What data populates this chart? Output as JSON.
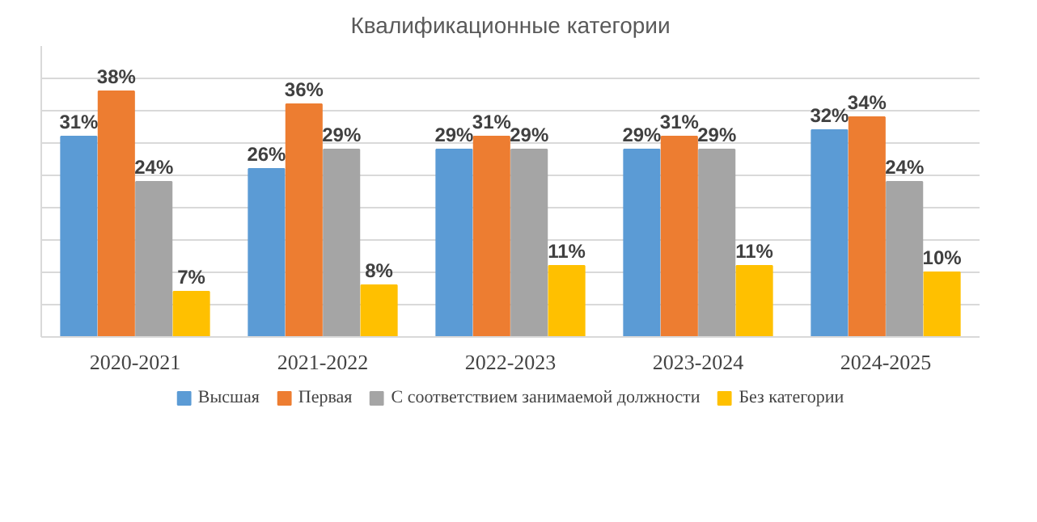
{
  "chart_data": {
    "type": "bar",
    "title": "Квалификационные категории",
    "categories": [
      "2020-2021",
      "2021-2022",
      "2022-2023",
      "2023-2024",
      "2024-2025"
    ],
    "series": [
      {
        "name": "Высшая",
        "color": "#5b9bd5",
        "values": [
          31,
          26,
          29,
          29,
          32
        ],
        "value_labels": [
          "31%",
          "26%",
          "29%",
          "29%",
          "32%"
        ]
      },
      {
        "name": "Первая",
        "color": "#ed7d31",
        "values": [
          38,
          36,
          31,
          31,
          34
        ],
        "value_labels": [
          "38%",
          "36%",
          "31%",
          "31%",
          "34%"
        ]
      },
      {
        "name": "С соответствием занимаемой должности",
        "color": "#a5a5a5",
        "values": [
          24,
          29,
          29,
          29,
          24
        ],
        "value_labels": [
          "24%",
          "29%",
          "29%",
          "29%",
          "24%"
        ]
      },
      {
        "name": "Без категории",
        "color": "#ffc000",
        "values": [
          7,
          8,
          11,
          11,
          10
        ],
        "value_labels": [
          "7%",
          "8%",
          "11%",
          "11%",
          "10%"
        ]
      }
    ],
    "ylim": [
      0,
      45
    ],
    "yticks": [
      {
        "value": 0,
        "label": null
      },
      {
        "value": 5,
        "label": null
      },
      {
        "value": 10,
        "label": null
      },
      {
        "value": 15,
        "label": null
      },
      {
        "value": 20,
        "label": null
      },
      {
        "value": 25,
        "label": null
      },
      {
        "value": 30,
        "label": null
      },
      {
        "value": 35,
        "label": null
      },
      {
        "value": 40,
        "label": null
      }
    ],
    "tick_labels": "x",
    "grid": "y",
    "legend": "bottom"
  }
}
